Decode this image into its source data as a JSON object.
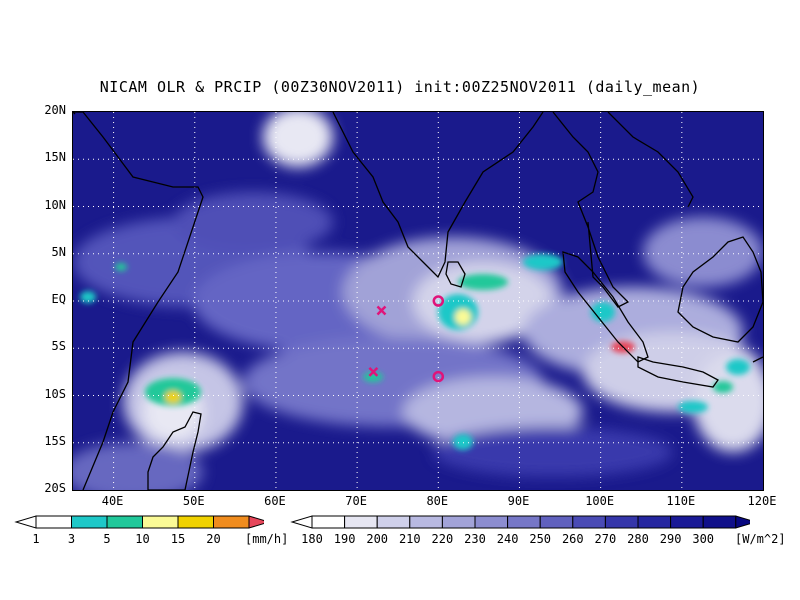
{
  "title": "NICAM OLR & PRCIP (00Z30NOV2011) init:00Z25NOV2011 (daily_mean)",
  "map": {
    "lon_range": [
      35,
      120
    ],
    "lat_range": [
      -20,
      20
    ],
    "y_ticks": [
      "20N",
      "15N",
      "10N",
      "5N",
      "EQ",
      "5S",
      "10S",
      "15S",
      "20S"
    ],
    "x_ticks": [
      "40E",
      "50E",
      "60E",
      "70E",
      "80E",
      "90E",
      "100E",
      "110E",
      "120E"
    ],
    "grid": "dotted",
    "markers": [
      {
        "type": "x",
        "label": "x-marker",
        "lon": 73,
        "lat": -1
      },
      {
        "type": "x",
        "label": "x-marker",
        "lon": 72,
        "lat": -7.5
      },
      {
        "type": "circle",
        "label": "circle-marker",
        "lon": 80,
        "lat": 0
      },
      {
        "type": "circle",
        "label": "circle-marker",
        "lon": 80,
        "lat": -8
      }
    ]
  },
  "precip_colorbar": {
    "labels": [
      "1",
      "3",
      "5",
      "10",
      "15",
      "20"
    ],
    "colors": [
      "#1ec8c8",
      "#20c89a",
      "#fafa96",
      "#f0d200",
      "#f08c1e",
      "#e6465a"
    ],
    "unit": "[mm/h]"
  },
  "olr_colorbar": {
    "labels": [
      "180",
      "190",
      "200",
      "210",
      "220",
      "230",
      "240",
      "250",
      "260",
      "270",
      "280",
      "290",
      "300"
    ],
    "colors": [
      "#ffffff",
      "#e6e6f2",
      "#cfd0ea",
      "#b8b9e1",
      "#a2a3d8",
      "#8c8dd0",
      "#7677c7",
      "#6061be",
      "#4a4bb5",
      "#3536aa",
      "#2526a0",
      "#1a1a96",
      "#10108a",
      "#080880"
    ],
    "unit": "[W/m^2]"
  }
}
